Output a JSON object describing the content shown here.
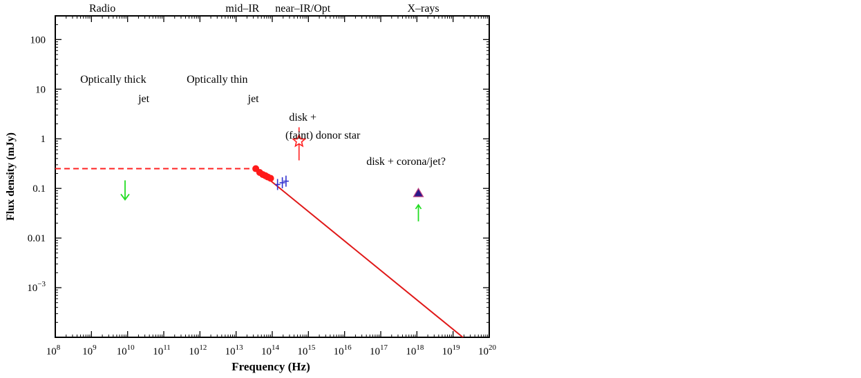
{
  "chart_data": {
    "type": "scatter",
    "title": "",
    "xlabel": "Frequency (Hz)",
    "ylabel": "Flux density (mJy)",
    "x_scale": "log",
    "y_scale": "log",
    "xlim": [
      100000000.0,
      1e+20
    ],
    "ylim": [
      0.0001,
      300
    ],
    "grid": false,
    "x_ticks": [
      {
        "v": 100000000.0,
        "mant": "10",
        "exp": "8"
      },
      {
        "v": 1000000000.0,
        "mant": "10",
        "exp": "9"
      },
      {
        "v": 10000000000.0,
        "mant": "10",
        "exp": "10"
      },
      {
        "v": 100000000000.0,
        "mant": "10",
        "exp": "11"
      },
      {
        "v": 1000000000000.0,
        "mant": "10",
        "exp": "12"
      },
      {
        "v": 10000000000000.0,
        "mant": "10",
        "exp": "13"
      },
      {
        "v": 100000000000000.0,
        "mant": "10",
        "exp": "14"
      },
      {
        "v": 1000000000000000.0,
        "mant": "10",
        "exp": "15"
      },
      {
        "v": 1e+16,
        "mant": "10",
        "exp": "16"
      },
      {
        "v": 1e+17,
        "mant": "10",
        "exp": "17"
      },
      {
        "v": 1e+18,
        "mant": "10",
        "exp": "18"
      },
      {
        "v": 1e+19,
        "mant": "10",
        "exp": "19"
      },
      {
        "v": 1e+20,
        "mant": "10",
        "exp": "20"
      }
    ],
    "y_ticks": [
      {
        "v": 100,
        "label": "100"
      },
      {
        "v": 10,
        "label": "10"
      },
      {
        "v": 1,
        "label": "1"
      },
      {
        "v": 0.1,
        "label": "0.1"
      },
      {
        "v": 0.01,
        "label": "0.01"
      },
      {
        "v": 0.001,
        "mant": "10",
        "exp": "−3"
      }
    ],
    "band_labels": [
      {
        "text": "Radio",
        "x": 2000000000.0
      },
      {
        "text": "mid–IR",
        "x": 15000000000000.0
      },
      {
        "text": "near–IR/Opt",
        "x": 700000000000000.0
      },
      {
        "text": "X–rays",
        "x": 1.5e+18
      }
    ],
    "annotations": [
      {
        "text": "Optically thick",
        "x": 4000000000.0,
        "y": 13.5
      },
      {
        "text": "jet",
        "x": 28000000000.0,
        "y": 5.5
      },
      {
        "text": "Optically thin",
        "x": 3000000000000.0,
        "y": 13.5
      },
      {
        "text": "jet",
        "x": 30000000000000.0,
        "y": 5.5
      },
      {
        "text": "disk +",
        "x": 700000000000000.0,
        "y": 2.3
      },
      {
        "text": "(faint) donor star",
        "x": 2500000000000000.0,
        "y": 1.0
      },
      {
        "text": "disk + corona/jet?",
        "x": 5e+17,
        "y": 0.3
      }
    ],
    "series": [
      {
        "kind": "dashed-line",
        "color": "#ff2020",
        "x": [
          100000000.0,
          35000000000000.0
        ],
        "y": [
          0.25,
          0.25
        ]
      },
      {
        "kind": "line",
        "color": "#e01818",
        "x": [
          35000000000000.0,
          6e+19
        ],
        "y": [
          0.25,
          5e-05
        ]
      },
      {
        "kind": "points",
        "marker": "filled-circle",
        "color": "#ff1a1a",
        "x": [
          35000000000000.0,
          45000000000000.0,
          55000000000000.0,
          65000000000000.0,
          75000000000000.0,
          90000000000000.0
        ],
        "y": [
          0.25,
          0.21,
          0.19,
          0.18,
          0.17,
          0.16
        ]
      },
      {
        "kind": "points",
        "marker": "errorbar",
        "color": "#3030d0",
        "x": [
          140000000000000.0,
          190000000000000.0,
          240000000000000.0
        ],
        "y": [
          0.12,
          0.13,
          0.14
        ]
      },
      {
        "kind": "points",
        "marker": "star",
        "color": "#ff2020",
        "x": [
          550000000000000.0
        ],
        "y": [
          0.9
        ]
      },
      {
        "kind": "upper-limit",
        "color": "#22dd22",
        "x": [
          8500000000.0
        ],
        "y": [
          0.12
        ]
      },
      {
        "kind": "points",
        "marker": "filled-triangle",
        "color": "#2a1a8a",
        "x": [
          1.1e+18
        ],
        "y": [
          0.08
        ]
      },
      {
        "kind": "lower-limit",
        "color": "#22dd22",
        "x": [
          1.1e+18
        ],
        "y": [
          0.028
        ]
      }
    ]
  }
}
